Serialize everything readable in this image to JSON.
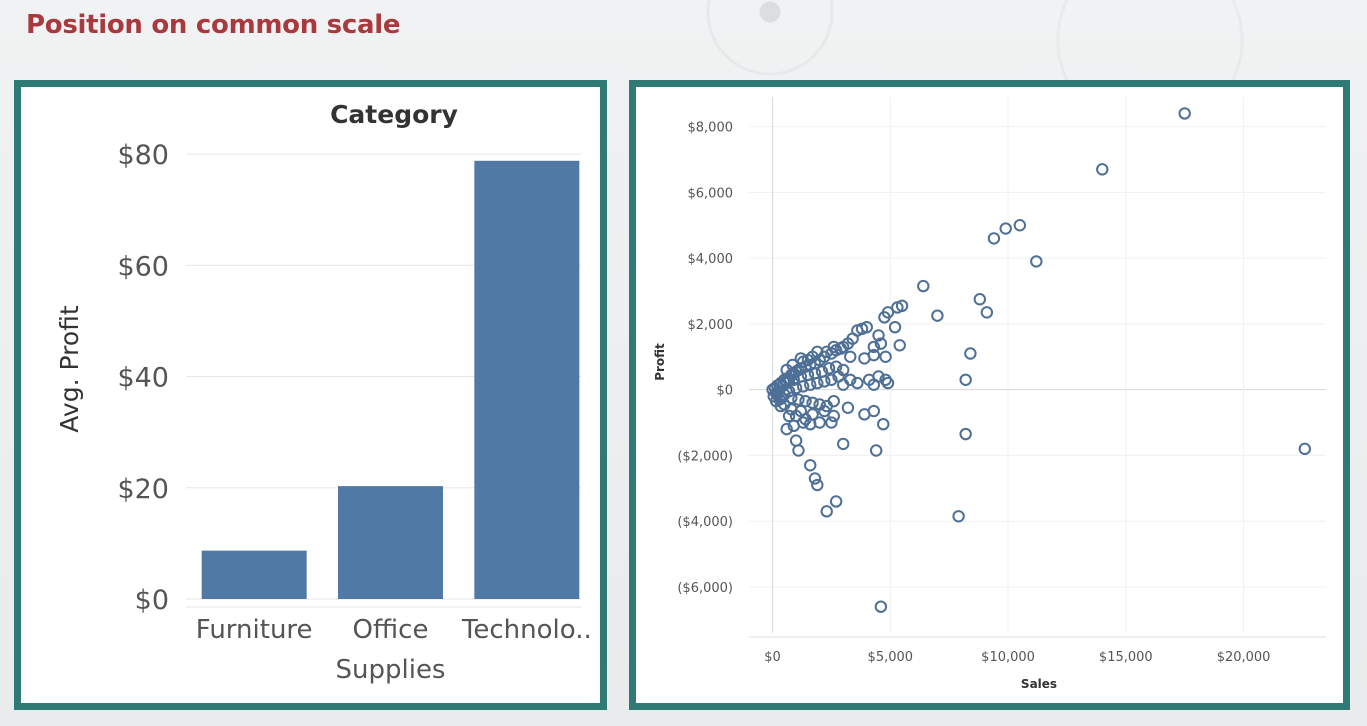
{
  "slide": {
    "title": "Position on common scale"
  },
  "chart_data": [
    {
      "type": "bar",
      "title": "Category",
      "ylabel": "Avg. Profit",
      "xlabel": "",
      "categories": [
        "Furniture",
        "Office Supplies",
        "Technology"
      ],
      "category_labels": [
        [
          "Furniture"
        ],
        [
          "Office",
          "Supplies"
        ],
        [
          "Technolo.."
        ]
      ],
      "values": [
        8.7,
        20.3,
        78.8
      ],
      "ylim": [
        0,
        82
      ],
      "yticks": [
        0,
        20,
        40,
        60,
        80
      ],
      "ytick_labels": [
        "$0",
        "$20",
        "$40",
        "$60",
        "$80"
      ],
      "grid": true,
      "color": "#5079a5"
    },
    {
      "type": "scatter",
      "xlabel": "Sales",
      "ylabel": "Profit",
      "xlim": [
        -1000,
        23500
      ],
      "ylim": [
        -7400,
        8900
      ],
      "xticks": [
        0,
        5000,
        10000,
        15000,
        20000
      ],
      "xtick_labels": [
        "$0",
        "$5,000",
        "$10,000",
        "$15,000",
        "$20,000"
      ],
      "yticks": [
        -6000,
        -4000,
        -2000,
        0,
        2000,
        4000,
        6000,
        8000
      ],
      "ytick_labels": [
        "($6,000)",
        "($4,000)",
        "($2,000)",
        "$0",
        "$2,000",
        "$4,000",
        "$6,000",
        "$8,000"
      ],
      "grid": true,
      "color": "#4e6f96",
      "points": [
        [
          17500,
          8400
        ],
        [
          14000,
          6700
        ],
        [
          10500,
          5000
        ],
        [
          9900,
          4900
        ],
        [
          9400,
          4600
        ],
        [
          11200,
          3900
        ],
        [
          6400,
          3150
        ],
        [
          7000,
          2250
        ],
        [
          8800,
          2750
        ],
        [
          9100,
          2350
        ],
        [
          5500,
          2550
        ],
        [
          5300,
          2500
        ],
        [
          4900,
          2350
        ],
        [
          4750,
          2200
        ],
        [
          5200,
          1900
        ],
        [
          4000,
          1900
        ],
        [
          3800,
          1850
        ],
        [
          3600,
          1800
        ],
        [
          4500,
          1650
        ],
        [
          4600,
          1400
        ],
        [
          5400,
          1350
        ],
        [
          4300,
          1300
        ],
        [
          3400,
          1550
        ],
        [
          3200,
          1400
        ],
        [
          8400,
          1100
        ],
        [
          4800,
          1000
        ],
        [
          4300,
          1050
        ],
        [
          3900,
          950
        ],
        [
          3300,
          1000
        ],
        [
          3000,
          1300
        ],
        [
          8200,
          300
        ],
        [
          4800,
          300
        ],
        [
          4500,
          400
        ],
        [
          4100,
          300
        ],
        [
          4300,
          150
        ],
        [
          4900,
          200
        ],
        [
          3600,
          200
        ],
        [
          3300,
          300
        ],
        [
          3000,
          150
        ],
        [
          4300,
          -650
        ],
        [
          3900,
          -750
        ],
        [
          3200,
          -550
        ],
        [
          4700,
          -1050
        ],
        [
          3000,
          -1650
        ],
        [
          4400,
          -1850
        ],
        [
          8200,
          -1350
        ],
        [
          22600,
          -1800
        ],
        [
          7900,
          -3850
        ],
        [
          4600,
          -6600
        ],
        [
          2700,
          -3400
        ],
        [
          2300,
          -3700
        ],
        [
          1900,
          -2900
        ],
        [
          1800,
          -2700
        ],
        [
          1600,
          -2300
        ],
        [
          1100,
          -1850
        ],
        [
          1000,
          -1550
        ],
        [
          600,
          -1200
        ],
        [
          900,
          -1100
        ],
        [
          1300,
          -1000
        ],
        [
          1600,
          -1050
        ],
        [
          2000,
          -1000
        ],
        [
          2500,
          -1000
        ],
        [
          2600,
          -800
        ],
        [
          2200,
          -650
        ],
        [
          1700,
          -750
        ],
        [
          1200,
          -650
        ],
        [
          800,
          -600
        ],
        [
          500,
          -450
        ],
        [
          300,
          -300
        ],
        [
          200,
          -150
        ],
        [
          0,
          0
        ],
        [
          100,
          50
        ],
        [
          200,
          120
        ],
        [
          350,
          200
        ],
        [
          500,
          300
        ],
        [
          650,
          350
        ],
        [
          800,
          450
        ],
        [
          1000,
          550
        ],
        [
          1200,
          650
        ],
        [
          1400,
          700
        ],
        [
          1600,
          750
        ],
        [
          1800,
          800
        ],
        [
          2000,
          900
        ],
        [
          2200,
          1000
        ],
        [
          2500,
          1100
        ],
        [
          2700,
          1200
        ],
        [
          2900,
          1250
        ],
        [
          1500,
          900
        ],
        [
          1100,
          600
        ],
        [
          900,
          500
        ],
        [
          700,
          300
        ],
        [
          400,
          100
        ],
        [
          250,
          -50
        ],
        [
          150,
          -100
        ],
        [
          50,
          -200
        ],
        [
          300,
          150
        ],
        [
          600,
          200
        ],
        [
          900,
          300
        ],
        [
          1200,
          400
        ],
        [
          1500,
          450
        ],
        [
          1800,
          500
        ],
        [
          2100,
          550
        ],
        [
          2400,
          650
        ],
        [
          2700,
          700
        ],
        [
          3000,
          600
        ],
        [
          2800,
          400
        ],
        [
          2500,
          300
        ],
        [
          2200,
          250
        ],
        [
          1900,
          200
        ],
        [
          1600,
          150
        ],
        [
          1300,
          100
        ],
        [
          1000,
          50
        ],
        [
          700,
          -50
        ],
        [
          500,
          -150
        ],
        [
          400,
          -250
        ],
        [
          800,
          -250
        ],
        [
          1100,
          -300
        ],
        [
          1400,
          -350
        ],
        [
          1700,
          -400
        ],
        [
          2000,
          -450
        ],
        [
          2300,
          -500
        ],
        [
          2600,
          -350
        ],
        [
          1000,
          -800
        ],
        [
          1400,
          -900
        ],
        [
          700,
          -800
        ],
        [
          350,
          -500
        ],
        [
          150,
          -350
        ],
        [
          600,
          600
        ],
        [
          850,
          750
        ],
        [
          1300,
          850
        ],
        [
          1700,
          1000
        ],
        [
          2300,
          1150
        ],
        [
          2600,
          1300
        ],
        [
          1900,
          1150
        ],
        [
          1200,
          950
        ]
      ]
    }
  ]
}
